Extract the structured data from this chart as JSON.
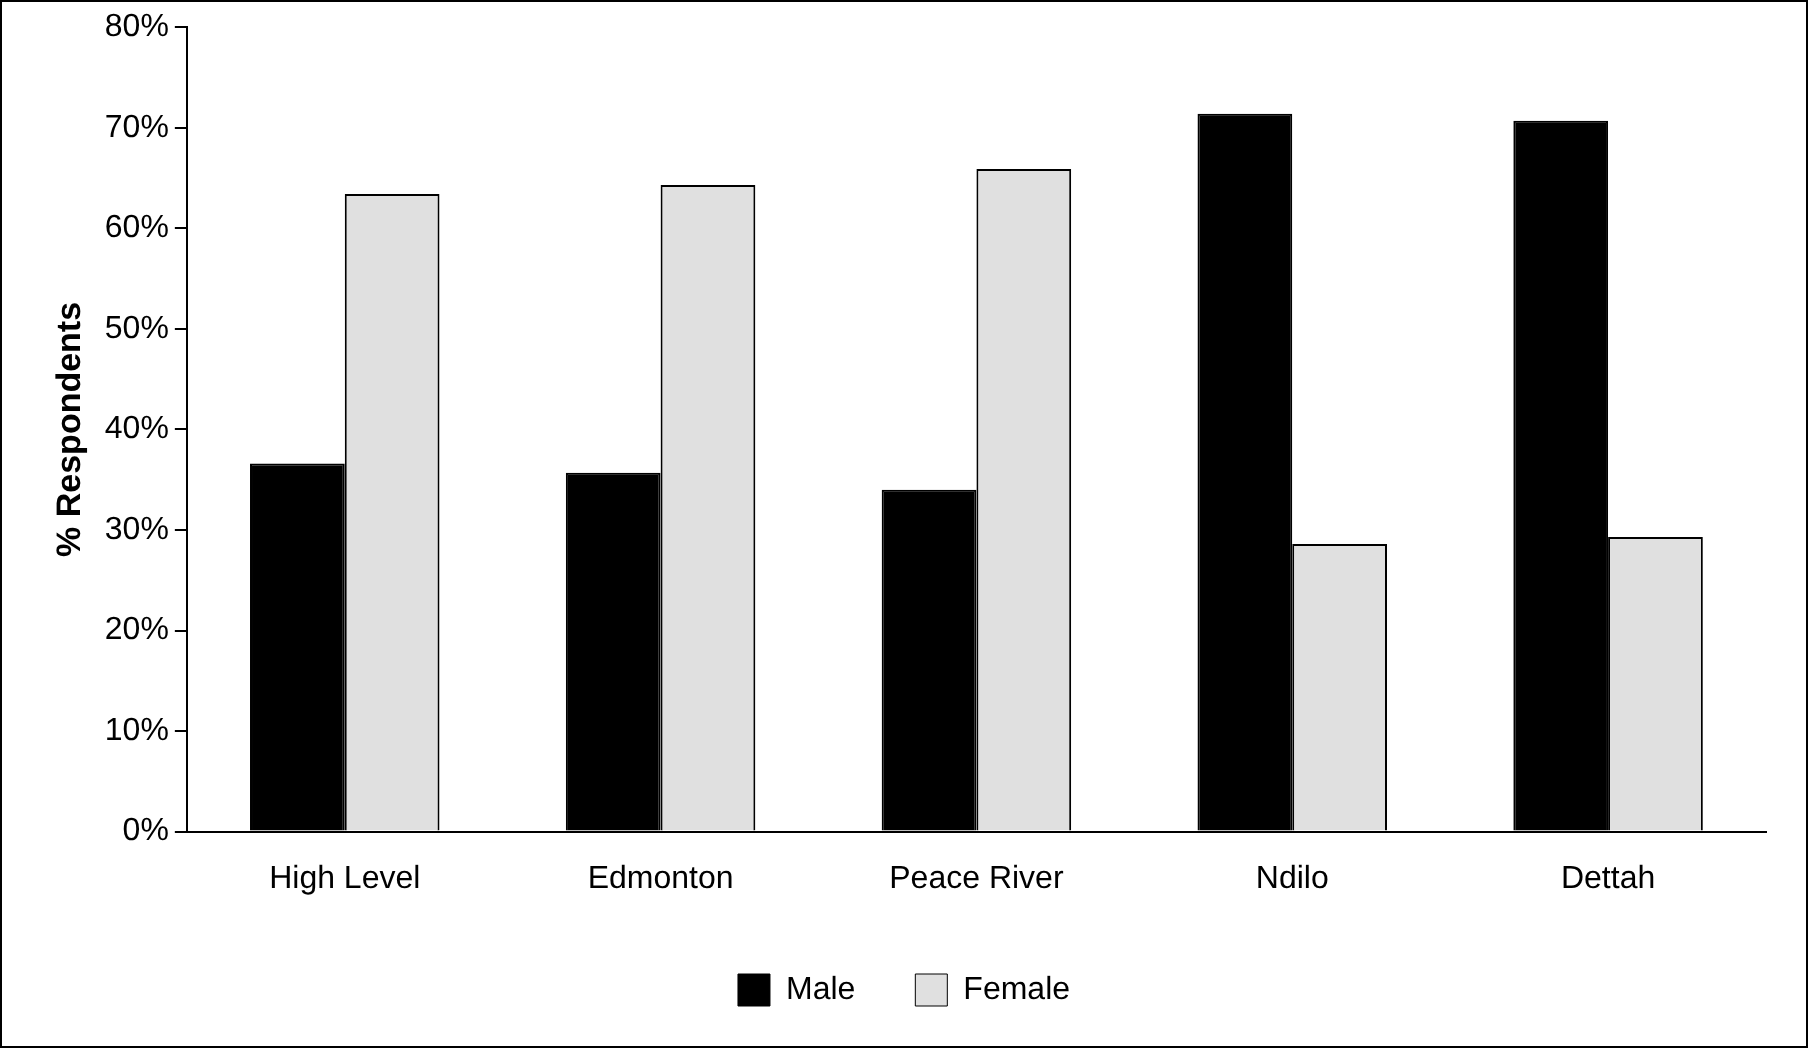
{
  "chart_data": {
    "type": "bar",
    "ylabel": "% Respondents",
    "categories": [
      "High Level",
      "Edmonton",
      "Peace River",
      "Ndilo",
      "Dettah"
    ],
    "series": [
      {
        "name": "Male",
        "color": "#000000",
        "values": [
          36.6,
          35.7,
          34.0,
          71.4,
          70.7
        ]
      },
      {
        "name": "Female",
        "color": "#e0e0e0",
        "values": [
          63.4,
          64.3,
          65.9,
          28.6,
          29.3
        ]
      }
    ],
    "ylim": [
      0,
      80
    ],
    "yticks": [
      {
        "value": 0,
        "label": "0%"
      },
      {
        "value": 10,
        "label": "10%"
      },
      {
        "value": 20,
        "label": "20%"
      },
      {
        "value": 30,
        "label": "30%"
      },
      {
        "value": 40,
        "label": "40%"
      },
      {
        "value": 50,
        "label": "50%"
      },
      {
        "value": 60,
        "label": "60%"
      },
      {
        "value": 70,
        "label": "70%"
      },
      {
        "value": 80,
        "label": "80%"
      }
    ],
    "grid": false,
    "legend": "bottom"
  }
}
